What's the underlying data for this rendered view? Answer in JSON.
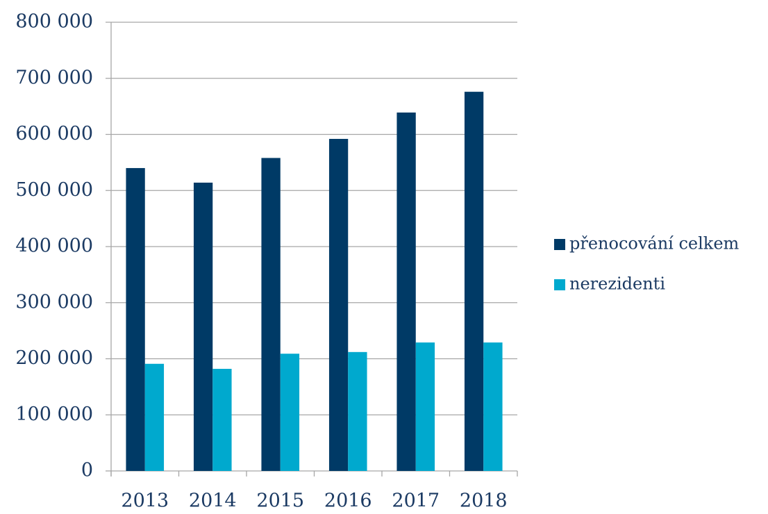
{
  "chart_data": {
    "type": "bar",
    "categories": [
      "2013",
      "2014",
      "2015",
      "2016",
      "2017",
      "2018"
    ],
    "series": [
      {
        "name": "přenocování celkem",
        "color": "#003a66",
        "values": [
          540000,
          514000,
          558000,
          592000,
          639000,
          676000
        ]
      },
      {
        "name": "nerezidenti",
        "color": "#00a9ce",
        "values": [
          191000,
          182000,
          209000,
          212000,
          229000,
          229000
        ]
      }
    ],
    "ylim": [
      0,
      800000
    ],
    "yticks": [
      0,
      {
        "value": 100000,
        "label": "100 000"
      },
      {
        "value": 200000,
        "label": "200 000"
      },
      {
        "value": 300000,
        "label": "300 000"
      },
      {
        "value": 400000,
        "label": "400 000"
      },
      {
        "value": 500000,
        "label": "500 000"
      },
      {
        "value": 600000,
        "label": "600 000"
      },
      {
        "value": 700000,
        "label": "700 000"
      },
      {
        "value": 800000,
        "label": "800 000"
      }
    ],
    "grid": true,
    "legend": "right"
  }
}
